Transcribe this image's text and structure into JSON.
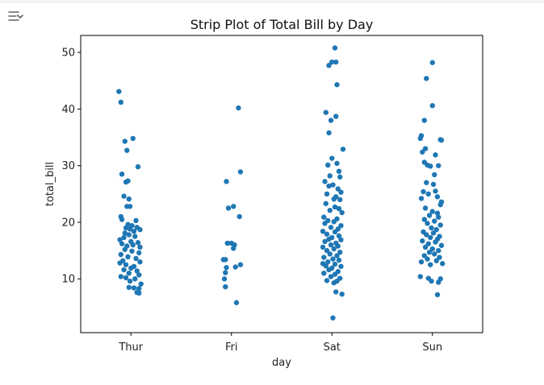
{
  "icons": {
    "output_toggle": "output-toggle-icon"
  },
  "chart_data": {
    "type": "scatter",
    "subtype": "strip",
    "title": "Strip Plot of Total Bill by Day",
    "xlabel": "day",
    "ylabel": "total_bill",
    "categories": [
      "Thur",
      "Fri",
      "Sat",
      "Sun"
    ],
    "yticks": [
      10,
      20,
      30,
      40,
      50
    ],
    "ylim": [
      0.5,
      53
    ],
    "grid": false,
    "marker_color": "#1f77b4",
    "series": [
      {
        "category": "Thur",
        "points": [
          [
            -0.12,
            43.1
          ],
          [
            -0.1,
            41.2
          ],
          [
            0.02,
            34.8
          ],
          [
            -0.06,
            34.3
          ],
          [
            -0.04,
            32.7
          ],
          [
            0.07,
            29.8
          ],
          [
            -0.09,
            28.5
          ],
          [
            -0.03,
            27.3
          ],
          [
            -0.05,
            27.1
          ],
          [
            -0.07,
            24.6
          ],
          [
            -0.02,
            24.1
          ],
          [
            -0.04,
            22.8
          ],
          [
            -0.01,
            22.8
          ],
          [
            -0.1,
            21.0
          ],
          [
            -0.09,
            20.5
          ],
          [
            0.05,
            20.3
          ],
          [
            -0.03,
            19.6
          ],
          [
            0.01,
            19.4
          ],
          [
            0.06,
            19.1
          ],
          [
            -0.05,
            19.0
          ],
          [
            -0.01,
            18.8
          ],
          [
            0.09,
            18.7
          ],
          [
            0.03,
            18.4
          ],
          [
            -0.06,
            18.1
          ],
          [
            -0.02,
            17.8
          ],
          [
            0.04,
            17.5
          ],
          [
            -0.07,
            17.3
          ],
          [
            -0.11,
            16.9
          ],
          [
            0.0,
            16.6
          ],
          [
            0.07,
            16.4
          ],
          [
            -0.09,
            16.2
          ],
          [
            0.02,
            16.0
          ],
          [
            -0.04,
            15.8
          ],
          [
            0.09,
            15.6
          ],
          [
            -0.06,
            15.2
          ],
          [
            0.01,
            14.9
          ],
          [
            0.08,
            14.6
          ],
          [
            -0.1,
            14.3
          ],
          [
            -0.03,
            13.9
          ],
          [
            0.05,
            13.6
          ],
          [
            -0.08,
            13.2
          ],
          [
            0.09,
            13.0
          ],
          [
            -0.11,
            12.8
          ],
          [
            -0.05,
            12.5
          ],
          [
            0.03,
            12.2
          ],
          [
            0.0,
            11.9
          ],
          [
            -0.07,
            11.6
          ],
          [
            0.06,
            11.4
          ],
          [
            -0.02,
            11.0
          ],
          [
            0.08,
            10.7
          ],
          [
            -0.1,
            10.4
          ],
          [
            -0.05,
            10.2
          ],
          [
            0.04,
            10.0
          ],
          [
            -0.01,
            9.6
          ],
          [
            0.1,
            9.1
          ],
          [
            -0.02,
            8.5
          ],
          [
            0.03,
            8.4
          ],
          [
            0.08,
            8.3
          ],
          [
            0.06,
            7.6
          ],
          [
            0.08,
            7.5
          ]
        ]
      },
      {
        "category": "Fri",
        "points": [
          [
            0.07,
            40.2
          ],
          [
            0.09,
            28.9
          ],
          [
            -0.05,
            27.2
          ],
          [
            -0.03,
            22.5
          ],
          [
            0.02,
            22.8
          ],
          [
            0.08,
            21.0
          ],
          [
            -0.04,
            16.3
          ],
          [
            0.0,
            16.3
          ],
          [
            0.03,
            16.0
          ],
          [
            0.02,
            15.4
          ],
          [
            -0.08,
            13.4
          ],
          [
            -0.06,
            13.4
          ],
          [
            -0.05,
            12.0
          ],
          [
            0.04,
            12.1
          ],
          [
            0.09,
            12.5
          ],
          [
            -0.06,
            11.1
          ],
          [
            -0.07,
            10.0
          ],
          [
            -0.06,
            8.6
          ],
          [
            0.05,
            5.8
          ]
        ]
      },
      {
        "category": "Sat",
        "points": [
          [
            0.03,
            50.8
          ],
          [
            0.0,
            48.3
          ],
          [
            0.04,
            48.3
          ],
          [
            -0.03,
            47.7
          ],
          [
            0.05,
            44.3
          ],
          [
            -0.06,
            39.4
          ],
          [
            0.04,
            38.7
          ],
          [
            -0.01,
            38.0
          ],
          [
            -0.03,
            35.8
          ],
          [
            0.11,
            32.9
          ],
          [
            0.0,
            31.3
          ],
          [
            -0.04,
            30.1
          ],
          [
            0.05,
            30.4
          ],
          [
            0.07,
            29.0
          ],
          [
            -0.02,
            28.2
          ],
          [
            0.08,
            28.0
          ],
          [
            -0.07,
            27.2
          ],
          [
            0.01,
            26.6
          ],
          [
            -0.03,
            26.4
          ],
          [
            0.06,
            25.9
          ],
          [
            0.09,
            25.3
          ],
          [
            -0.05,
            25.0
          ],
          [
            0.04,
            24.5
          ],
          [
            0.02,
            24.1
          ],
          [
            0.08,
            24.0
          ],
          [
            -0.06,
            23.3
          ],
          [
            0.03,
            22.7
          ],
          [
            0.07,
            22.4
          ],
          [
            -0.02,
            22.1
          ],
          [
            0.1,
            21.7
          ],
          [
            -0.08,
            20.9
          ],
          [
            0.05,
            20.6
          ],
          [
            -0.04,
            20.3
          ],
          [
            0.02,
            20.1
          ],
          [
            -0.07,
            19.8
          ],
          [
            0.09,
            19.4
          ],
          [
            -0.01,
            19.1
          ],
          [
            0.06,
            18.8
          ],
          [
            -0.09,
            18.4
          ],
          [
            0.03,
            18.3
          ],
          [
            -0.05,
            17.9
          ],
          [
            0.07,
            17.6
          ],
          [
            0.0,
            17.3
          ],
          [
            -0.03,
            17.0
          ],
          [
            0.09,
            16.9
          ],
          [
            -0.07,
            16.6
          ],
          [
            0.04,
            16.3
          ],
          [
            -0.01,
            16.0
          ],
          [
            0.06,
            15.8
          ],
          [
            -0.09,
            15.6
          ],
          [
            0.02,
            15.3
          ],
          [
            -0.05,
            15.0
          ],
          [
            0.08,
            14.7
          ],
          [
            -0.02,
            14.4
          ],
          [
            0.05,
            14.1
          ],
          [
            -0.08,
            13.8
          ],
          [
            0.01,
            13.5
          ],
          [
            0.07,
            13.3
          ],
          [
            -0.04,
            13.0
          ],
          [
            -0.09,
            12.7
          ],
          [
            0.03,
            12.6
          ],
          [
            -0.06,
            12.3
          ],
          [
            0.09,
            12.2
          ],
          [
            0.0,
            11.9
          ],
          [
            -0.03,
            11.6
          ],
          [
            0.06,
            11.3
          ],
          [
            -0.08,
            11.0
          ],
          [
            0.03,
            10.8
          ],
          [
            -0.01,
            10.4
          ],
          [
            0.08,
            10.1
          ],
          [
            -0.05,
            9.7
          ],
          [
            0.05,
            9.6
          ],
          [
            0.02,
            9.3
          ],
          [
            0.04,
            7.7
          ],
          [
            0.1,
            7.3
          ],
          [
            0.01,
            3.1
          ]
        ]
      },
      {
        "category": "Sun",
        "points": [
          [
            0.0,
            48.2
          ],
          [
            -0.06,
            45.4
          ],
          [
            0.0,
            40.6
          ],
          [
            -0.08,
            38.0
          ],
          [
            -0.11,
            35.3
          ],
          [
            -0.12,
            34.8
          ],
          [
            0.08,
            34.6
          ],
          [
            0.09,
            34.5
          ],
          [
            -0.07,
            33.0
          ],
          [
            -0.1,
            32.4
          ],
          [
            0.03,
            31.9
          ],
          [
            -0.08,
            30.6
          ],
          [
            -0.05,
            30.1
          ],
          [
            0.06,
            30.0
          ],
          [
            -0.02,
            29.9
          ],
          [
            0.02,
            28.4
          ],
          [
            -0.06,
            27.0
          ],
          [
            0.01,
            26.7
          ],
          [
            -0.09,
            25.4
          ],
          [
            0.03,
            25.5
          ],
          [
            -0.04,
            25.0
          ],
          [
            0.05,
            24.5
          ],
          [
            -0.11,
            24.2
          ],
          [
            0.09,
            23.6
          ],
          [
            0.08,
            23.1
          ],
          [
            -0.07,
            22.5
          ],
          [
            0.0,
            21.9
          ],
          [
            0.05,
            21.6
          ],
          [
            -0.03,
            21.2
          ],
          [
            0.06,
            20.9
          ],
          [
            -0.08,
            20.5
          ],
          [
            0.02,
            20.2
          ],
          [
            -0.05,
            19.8
          ],
          [
            0.08,
            19.5
          ],
          [
            -0.01,
            19.0
          ],
          [
            0.04,
            18.7
          ],
          [
            -0.09,
            18.3
          ],
          [
            0.01,
            18.1
          ],
          [
            -0.06,
            17.8
          ],
          [
            0.07,
            17.5
          ],
          [
            -0.02,
            17.3
          ],
          [
            0.05,
            17.0
          ],
          [
            -0.1,
            16.7
          ],
          [
            0.03,
            16.5
          ],
          [
            -0.04,
            16.2
          ],
          [
            0.09,
            15.9
          ],
          [
            -0.07,
            15.6
          ],
          [
            0.0,
            15.3
          ],
          [
            0.06,
            15.0
          ],
          [
            -0.03,
            14.7
          ],
          [
            0.02,
            14.4
          ],
          [
            -0.08,
            14.1
          ],
          [
            0.07,
            13.8
          ],
          [
            -0.05,
            13.5
          ],
          [
            0.04,
            13.2
          ],
          [
            -0.11,
            13.0
          ],
          [
            0.1,
            12.7
          ],
          [
            -0.02,
            12.5
          ],
          [
            -0.12,
            10.4
          ],
          [
            -0.04,
            10.1
          ],
          [
            0.08,
            10.0
          ],
          [
            -0.01,
            9.6
          ],
          [
            0.06,
            9.4
          ],
          [
            0.05,
            7.2
          ]
        ]
      }
    ]
  }
}
